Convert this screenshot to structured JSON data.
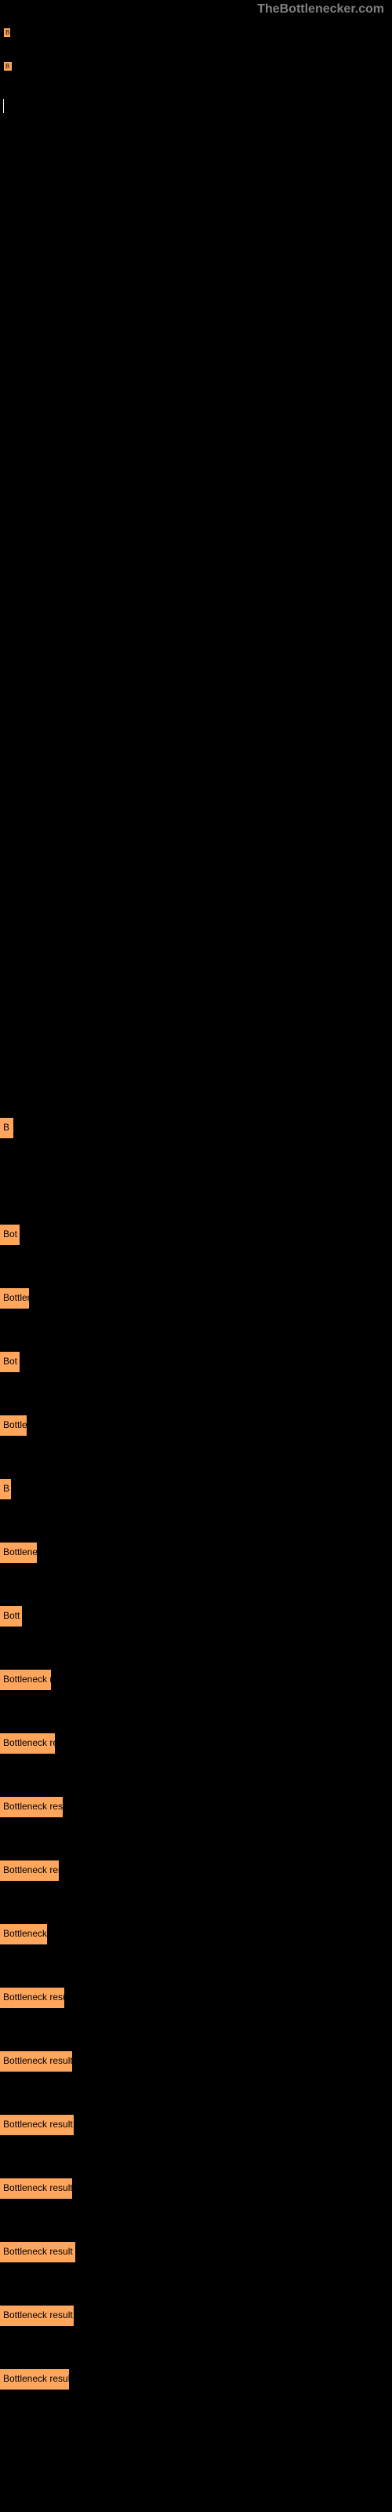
{
  "watermark": "TheBottlenecker.com",
  "topBars": [
    {
      "label": "B",
      "width": 10
    },
    {
      "label": "B",
      "width": 12
    }
  ],
  "bars": [
    {
      "label": "B",
      "width": 17
    },
    {
      "label": "Bot",
      "width": 25
    },
    {
      "label": "Bottlen",
      "width": 37
    },
    {
      "label": "Bot",
      "width": 25
    },
    {
      "label": "Bottle",
      "width": 34
    },
    {
      "label": "B",
      "width": 14
    },
    {
      "label": "Bottlene",
      "width": 47
    },
    {
      "label": "Bott",
      "width": 28
    },
    {
      "label": "Bottleneck r",
      "width": 65
    },
    {
      "label": "Bottleneck re",
      "width": 70
    },
    {
      "label": "Bottleneck resu",
      "width": 80
    },
    {
      "label": "Bottleneck res",
      "width": 75
    },
    {
      "label": "Bottleneck",
      "width": 60
    },
    {
      "label": "Bottleneck resu",
      "width": 82
    },
    {
      "label": "Bottleneck result",
      "width": 92
    },
    {
      "label": "Bottleneck result",
      "width": 94
    },
    {
      "label": "Bottleneck result",
      "width": 92
    },
    {
      "label": "Bottleneck result",
      "width": 96
    },
    {
      "label": "Bottleneck result",
      "width": 94
    },
    {
      "label": "Bottleneck resul",
      "width": 88
    }
  ],
  "colors": {
    "background": "#000000",
    "bar": "#ffa65c",
    "barText": "#000000",
    "watermark": "#808080"
  }
}
